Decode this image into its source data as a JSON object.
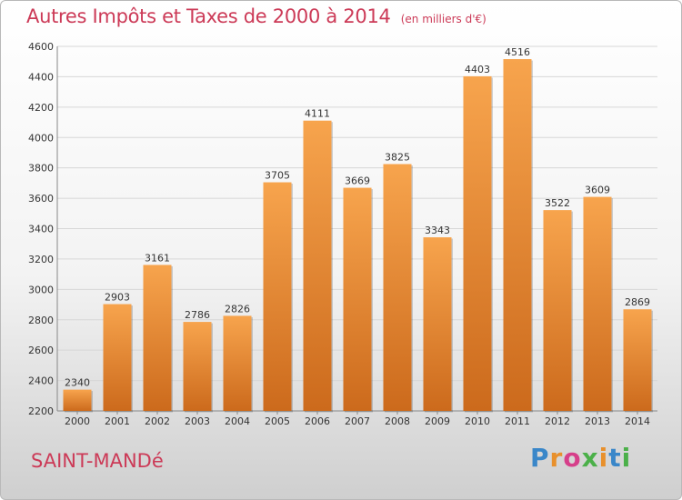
{
  "header": {
    "title": "Autres Impôts et Taxes de 2000 à 2014",
    "unit": "(en milliers d'€)"
  },
  "footer": {
    "city": "SAINT-MANDé",
    "brand": "Proxiti",
    "brand_letter_colors": [
      "#3a87c9",
      "#e8902c",
      "#d63f8a",
      "#4bb049",
      "#e8902c",
      "#3a87c9",
      "#4bb049"
    ]
  },
  "colors": {
    "title": "#cc3a57",
    "bar_top": "#f7a44d",
    "bar_bottom": "#cc6a1c",
    "grid": "#d7d7d7"
  },
  "chart_data": {
    "type": "bar",
    "title": "Autres Impôts et Taxes de 2000 à 2014",
    "subtitle": "(en milliers d'€)",
    "xlabel": "",
    "ylabel": "",
    "categories": [
      "2000",
      "2001",
      "2002",
      "2003",
      "2004",
      "2005",
      "2006",
      "2007",
      "2008",
      "2009",
      "2010",
      "2011",
      "2012",
      "2013",
      "2014"
    ],
    "values": [
      2340,
      2903,
      3161,
      2786,
      2826,
      3705,
      4111,
      3669,
      3825,
      3343,
      4403,
      4516,
      3522,
      3609,
      2869
    ],
    "ylim": [
      2200,
      4600
    ],
    "yticks": [
      2200,
      2400,
      2600,
      2800,
      3000,
      3200,
      3400,
      3600,
      3800,
      4000,
      4200,
      4400,
      4600
    ],
    "grid": true,
    "data_labels": true
  }
}
